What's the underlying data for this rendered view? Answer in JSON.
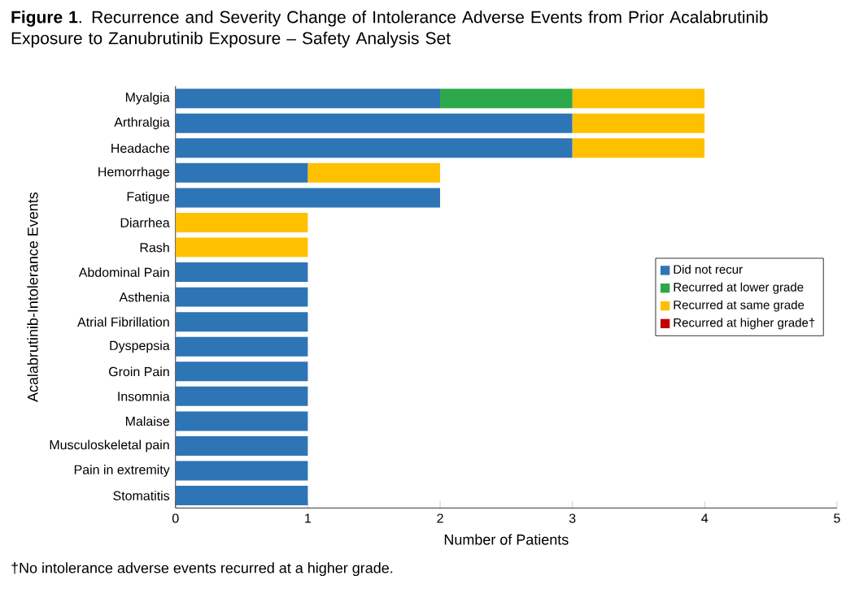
{
  "chart_data": {
    "type": "bar",
    "orientation": "horizontal",
    "stacked": true,
    "title": "**Figure 1**. Recurrence and Severity Change of Intolerance Adverse Events from Prior Acalabrutinib Exposure to Zanubrutinib Exposure – Safety Analysis Set",
    "xlabel": "Number of Patients",
    "ylabel": "Acalabrutinib-Intolerance Events",
    "categories": [
      "Myalgia",
      "Arthralgia",
      "Headache",
      "Hemorrhage",
      "Fatigue",
      "Diarrhea",
      "Rash",
      "Abdominal Pain",
      "Asthenia",
      "Atrial Fibrillation",
      "Dyspepsia",
      "Groin Pain",
      "Insomnia",
      "Malaise",
      "Musculoskeletal pain",
      "Pain in extremity",
      "Stomatitis"
    ],
    "series": [
      {
        "name": "Did not recur",
        "color": "#2e75b6",
        "values": [
          2,
          3,
          3,
          1,
          2,
          0,
          0,
          1,
          1,
          1,
          1,
          1,
          1,
          1,
          1,
          1,
          1
        ]
      },
      {
        "name": "Recurred at lower grade",
        "color": "#2ca84a",
        "values": [
          1,
          0,
          0,
          0,
          0,
          0,
          0,
          0,
          0,
          0,
          0,
          0,
          0,
          0,
          0,
          0,
          0
        ]
      },
      {
        "name": "Recurred at same grade",
        "color": "#ffc000",
        "values": [
          1,
          1,
          1,
          1,
          0,
          1,
          1,
          0,
          0,
          0,
          0,
          0,
          0,
          0,
          0,
          0,
          0
        ]
      },
      {
        "name": "Recurred at higher grade†",
        "color": "#c00000",
        "values": [
          0,
          0,
          0,
          0,
          0,
          0,
          0,
          0,
          0,
          0,
          0,
          0,
          0,
          0,
          0,
          0,
          0
        ]
      }
    ],
    "xlim": [
      0,
      5
    ],
    "xticks": [
      0,
      1,
      2,
      3,
      4,
      5
    ],
    "legend": "right",
    "annotations": [
      "†No intolerance adverse events recurred at a higher grade."
    ]
  }
}
